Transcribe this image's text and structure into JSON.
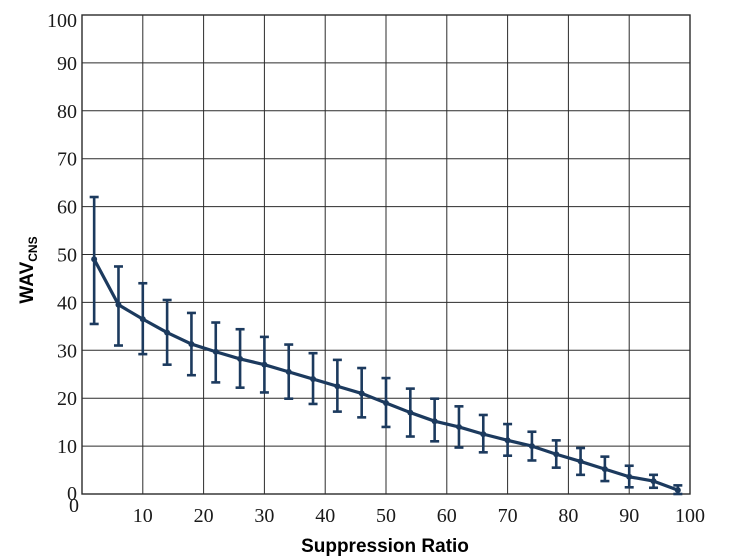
{
  "chart_data": {
    "type": "line",
    "xlabel": "Suppression Ratio",
    "ylabel": {
      "main": "WAV",
      "sub": "CNS"
    },
    "xlim": [
      0,
      100
    ],
    "ylim": [
      0,
      100
    ],
    "xticks": [
      0,
      10,
      20,
      30,
      40,
      50,
      60,
      70,
      80,
      90,
      100
    ],
    "yticks": [
      0,
      10,
      20,
      30,
      40,
      50,
      60,
      70,
      80,
      90,
      100
    ],
    "grid": true,
    "series_color": "#1c3a5e",
    "series": [
      {
        "x": [
          2,
          6,
          10,
          14,
          18,
          22,
          26,
          30,
          34,
          38,
          42,
          46,
          50,
          54,
          58,
          62,
          66,
          70,
          74,
          78,
          82,
          86,
          90,
          94,
          98
        ],
        "y": [
          49,
          39.5,
          36.5,
          33.7,
          31.3,
          29.7,
          28.2,
          27,
          25.5,
          24,
          22.5,
          21,
          19,
          17,
          15.2,
          14,
          12.5,
          11.2,
          10,
          8.3,
          6.8,
          5.2,
          3.6,
          2.7,
          0.8
        ],
        "err_low": [
          35.5,
          31,
          29.2,
          27,
          24.8,
          23.3,
          22.2,
          21.2,
          19.9,
          18.8,
          17.2,
          16,
          14,
          12,
          11,
          9.7,
          8.7,
          8,
          7,
          5.5,
          4,
          2.7,
          1.4,
          1.3,
          0
        ],
        "err_high": [
          62,
          47.5,
          44,
          40.5,
          37.8,
          35.8,
          34.4,
          32.8,
          31.2,
          29.4,
          28,
          26.3,
          24.2,
          22,
          19.9,
          18.3,
          16.5,
          14.6,
          13,
          11.2,
          9.6,
          7.8,
          5.9,
          4,
          1.8
        ]
      }
    ]
  }
}
